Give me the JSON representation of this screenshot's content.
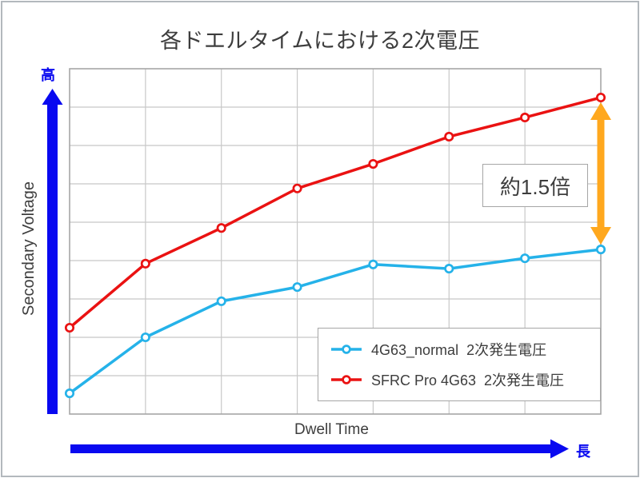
{
  "page": {
    "background": "#ffffff",
    "frame_color": "#b3b8bd"
  },
  "title": {
    "text": "各ドエルタイムにおける2次電圧",
    "color": "#3d3d3d"
  },
  "y_axis": {
    "label": "Secondary Voltage",
    "high_label": "高",
    "arrow_icon": "up-arrow",
    "arrow_color": "#0909f0"
  },
  "x_axis": {
    "label": "Dwell Time",
    "long_label": "長",
    "arrow_icon": "right-arrow",
    "arrow_color": "#0909f0"
  },
  "gap_annotation": {
    "text": "約1.5倍",
    "arrow_icon": "vertical-double-arrow",
    "arrow_color": "#ffa81e"
  },
  "legend": {
    "items": [
      {
        "label": "4G63_normal  2次発生電圧",
        "color": "#25b2e9",
        "marker": "circle"
      },
      {
        "label": "SFRC Pro 4G63  2次発生電圧",
        "color": "#ea1212",
        "marker": "open-circle"
      }
    ]
  },
  "colors": {
    "grid": "#c8c8c8",
    "plot_border": "#a6a6a6",
    "text": "#3d3d3d"
  },
  "chart_data": {
    "type": "line",
    "title": "各ドエルタイムにおける2次電圧",
    "xlabel": "Dwell Time",
    "ylabel": "Secondary Voltage",
    "x": [
      1,
      2,
      3,
      4,
      5,
      6,
      7,
      8
    ],
    "x_axis_note": "no numeric tick labels shown; dwell time increases to the right (長 = longer)",
    "y_axis_note": "no numeric tick labels shown; values estimated in horizontal-gridline units above plot bottom (高 = higher)",
    "ylim": [
      0,
      9
    ],
    "grid": true,
    "grid_columns": 7,
    "grid_rows": 9,
    "legend_position": "bottom-right",
    "series": [
      {
        "name": "4G63_normal 2次発生電圧",
        "color": "#25b2e9",
        "values": [
          0.54,
          2.0,
          2.94,
          3.31,
          3.9,
          3.79,
          4.06,
          4.29
        ]
      },
      {
        "name": "SFRC Pro 4G63 2次発生電圧",
        "color": "#ea1212",
        "values": [
          2.25,
          3.92,
          4.85,
          5.88,
          6.52,
          7.23,
          7.73,
          8.25
        ]
      }
    ],
    "annotation": {
      "text": "約1.5倍",
      "position": "between last data points of the two series"
    }
  }
}
